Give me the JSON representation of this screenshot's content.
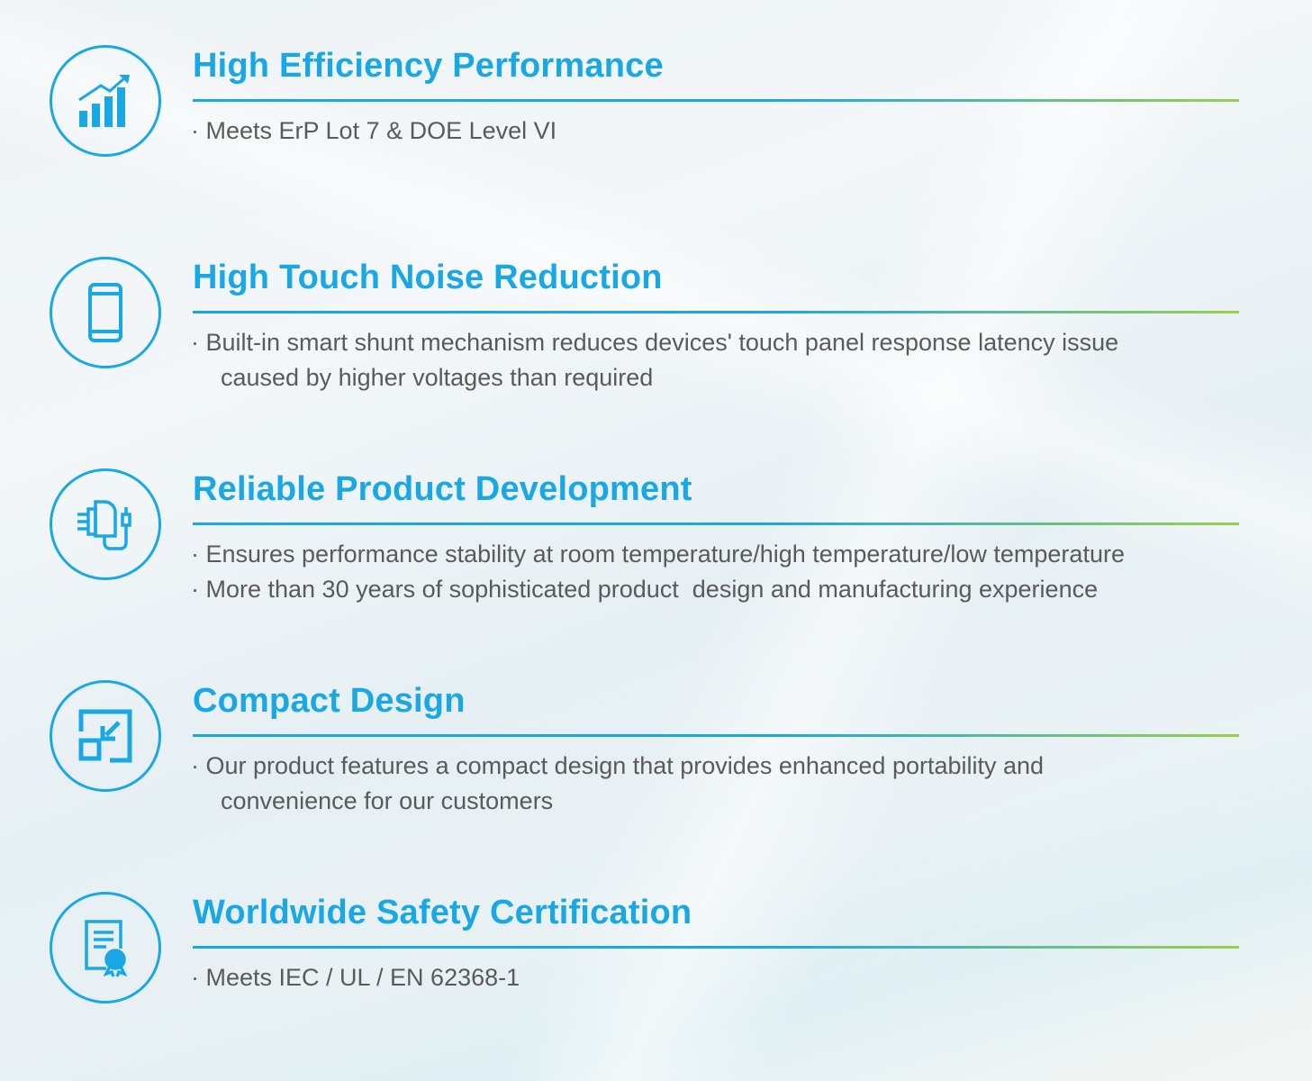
{
  "colors": {
    "accent": "#1aa7e6",
    "accent_end": "#9bcf4e",
    "text": "#5a5a5a"
  },
  "features": [
    {
      "icon": "bar-chart-growth-icon",
      "title": "High Efficiency Performance",
      "bullets": [
        "· Meets ErP Lot 7 & DOE Level VI"
      ]
    },
    {
      "icon": "smartphone-icon",
      "title": "High Touch Noise Reduction",
      "bullets": [
        "· Built-in smart shunt mechanism reduces devices' touch panel response latency issue\n  caused by higher voltages than required"
      ]
    },
    {
      "icon": "charger-adapter-icon",
      "title": "Reliable Product Development",
      "bullets": [
        "· Ensures performance stability at room temperature/high temperature/low temperature",
        "· More than 30 years of sophisticated product  design and manufacturing experience"
      ]
    },
    {
      "icon": "compact-resize-icon",
      "title": "Compact Design",
      "bullets": [
        "· Our product features a compact design that provides enhanced portability and\n  convenience for our customers"
      ]
    },
    {
      "icon": "certificate-icon",
      "title": "Worldwide Safety Certification",
      "bullets": [
        "· Meets IEC / UL / EN 62368-1"
      ]
    }
  ]
}
